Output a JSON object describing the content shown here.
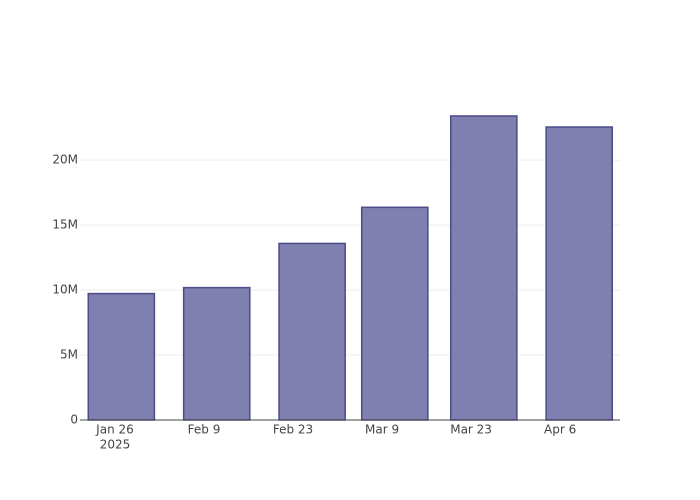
{
  "chart_data": {
    "type": "bar",
    "x": [
      "2025-01-27",
      "2025-02-11",
      "2025-02-26",
      "2025-03-11",
      "2025-03-25",
      "2025-04-09"
    ],
    "values": [
      9730000,
      10190000,
      13590000,
      16370000,
      23400000,
      22550000
    ],
    "color": "#7f7fb0",
    "line_color": "#4b4b8a",
    "xlim": [
      "2025-01-20T12:00:00Z",
      "2025-04-15T10:00:00Z"
    ],
    "xticks": [
      {
        "value": "2025-01-26",
        "label": "Jan 26"
      },
      {
        "value": "2025-02-09",
        "label": "Feb 9"
      },
      {
        "value": "2025-02-23",
        "label": "Feb 23"
      },
      {
        "value": "2025-03-09",
        "label": "Mar 9"
      },
      {
        "value": "2025-03-23",
        "label": "Mar 23"
      },
      {
        "value": "2025-04-06",
        "label": "Apr 6"
      }
    ],
    "x_year_label": "2025",
    "ylim": [
      0,
      24630000
    ],
    "yticks": [
      0,
      {
        "value": 5000000,
        "label": "5M"
      },
      {
        "value": 10000000,
        "label": "10M"
      },
      {
        "value": 15000000,
        "label": "15M"
      },
      {
        "value": 20000000,
        "label": "20M"
      }
    ],
    "grid": true
  }
}
